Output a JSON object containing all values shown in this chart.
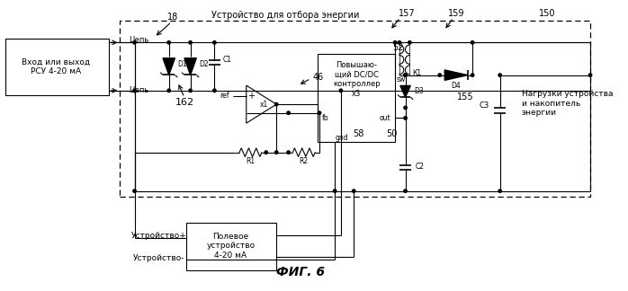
{
  "bg_color": "#ffffff",
  "fig_label": "ФИГ. 6",
  "label_18": "18",
  "label_157": "157",
  "label_159": "159",
  "label_150": "150",
  "label_46": "46",
  "label_52": "52",
  "label_58": "58",
  "label_50": "50",
  "label_162": "162",
  "label_155": "155",
  "box_rsu_text": "Вход или выход\nРСУ 4-20 мА",
  "box_dc_text": "Повышаю-\nщий DC/DC\nконтроллер\nх3",
  "box_field_text": "Полевое\nустройство\n4-20 мА",
  "label_energy": "Устройство для отбора энергии",
  "label_loads": "Нагрузки устройства\nи накопитель\nэнергии",
  "label_cep1": "Цепь",
  "label_cep2": "Цепь",
  "label_ustr_plus": "Устройство+",
  "label_ustr_minus": "Устройство-",
  "label_ref": "ref",
  "label_fb": "fb",
  "label_out": "out",
  "label_gnd": "gnd",
  "label_sw": "sw",
  "label_R1": "R1",
  "label_R2": "R2",
  "label_C1": "C1",
  "label_C2": "С2",
  "label_C3": "С3",
  "label_D1": "D1",
  "label_D2": "D2",
  "label_D3": "D3",
  "label_D4": "D4",
  "label_K1": "К1",
  "label_X1": "x1"
}
